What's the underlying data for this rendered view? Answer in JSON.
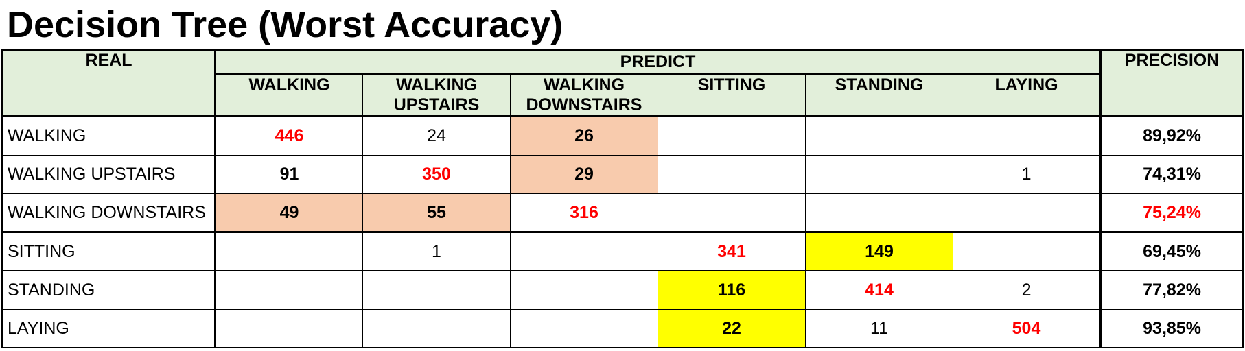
{
  "title": "Decision Tree (Worst Accuracy)",
  "headers": {
    "real": "REAL",
    "predict": "PREDICT",
    "precision": "PRECISION",
    "columns": [
      {
        "line1": "WALKING",
        "line2": ""
      },
      {
        "line1": "WALKING",
        "line2": "UPSTAIRS"
      },
      {
        "line1": "WALKING",
        "line2": "DOWNSTAIRS"
      },
      {
        "line1": "SITTING",
        "line2": ""
      },
      {
        "line1": "STANDING",
        "line2": ""
      },
      {
        "line1": "LAYING",
        "line2": ""
      }
    ]
  },
  "rows": [
    {
      "label": "WALKING",
      "cells": [
        "446",
        "24",
        "26",
        "",
        "",
        ""
      ],
      "precision": "89,92%"
    },
    {
      "label": "WALKING UPSTAIRS",
      "cells": [
        "91",
        "350",
        "29",
        "",
        "",
        "1"
      ],
      "precision": "74,31%"
    },
    {
      "label": "WALKING DOWNSTAIRS",
      "cells": [
        "49",
        "55",
        "316",
        "",
        "",
        ""
      ],
      "precision": "75,24%"
    },
    {
      "label": "SITTING",
      "cells": [
        "",
        "1",
        "",
        "341",
        "149",
        ""
      ],
      "precision": "69,45%"
    },
    {
      "label": "STANDING",
      "cells": [
        "",
        "",
        "",
        "116",
        "414",
        "2"
      ],
      "precision": "77,82%"
    },
    {
      "label": "LAYING",
      "cells": [
        "",
        "",
        "",
        "22",
        "11",
        "504"
      ],
      "precision": "93,85%"
    }
  ],
  "colors": {
    "header_fill": "#e2efda",
    "highlight_orange": "#f8cbad",
    "highlight_yellow": "#ffff00",
    "emphasis_red": "#ff0000"
  }
}
